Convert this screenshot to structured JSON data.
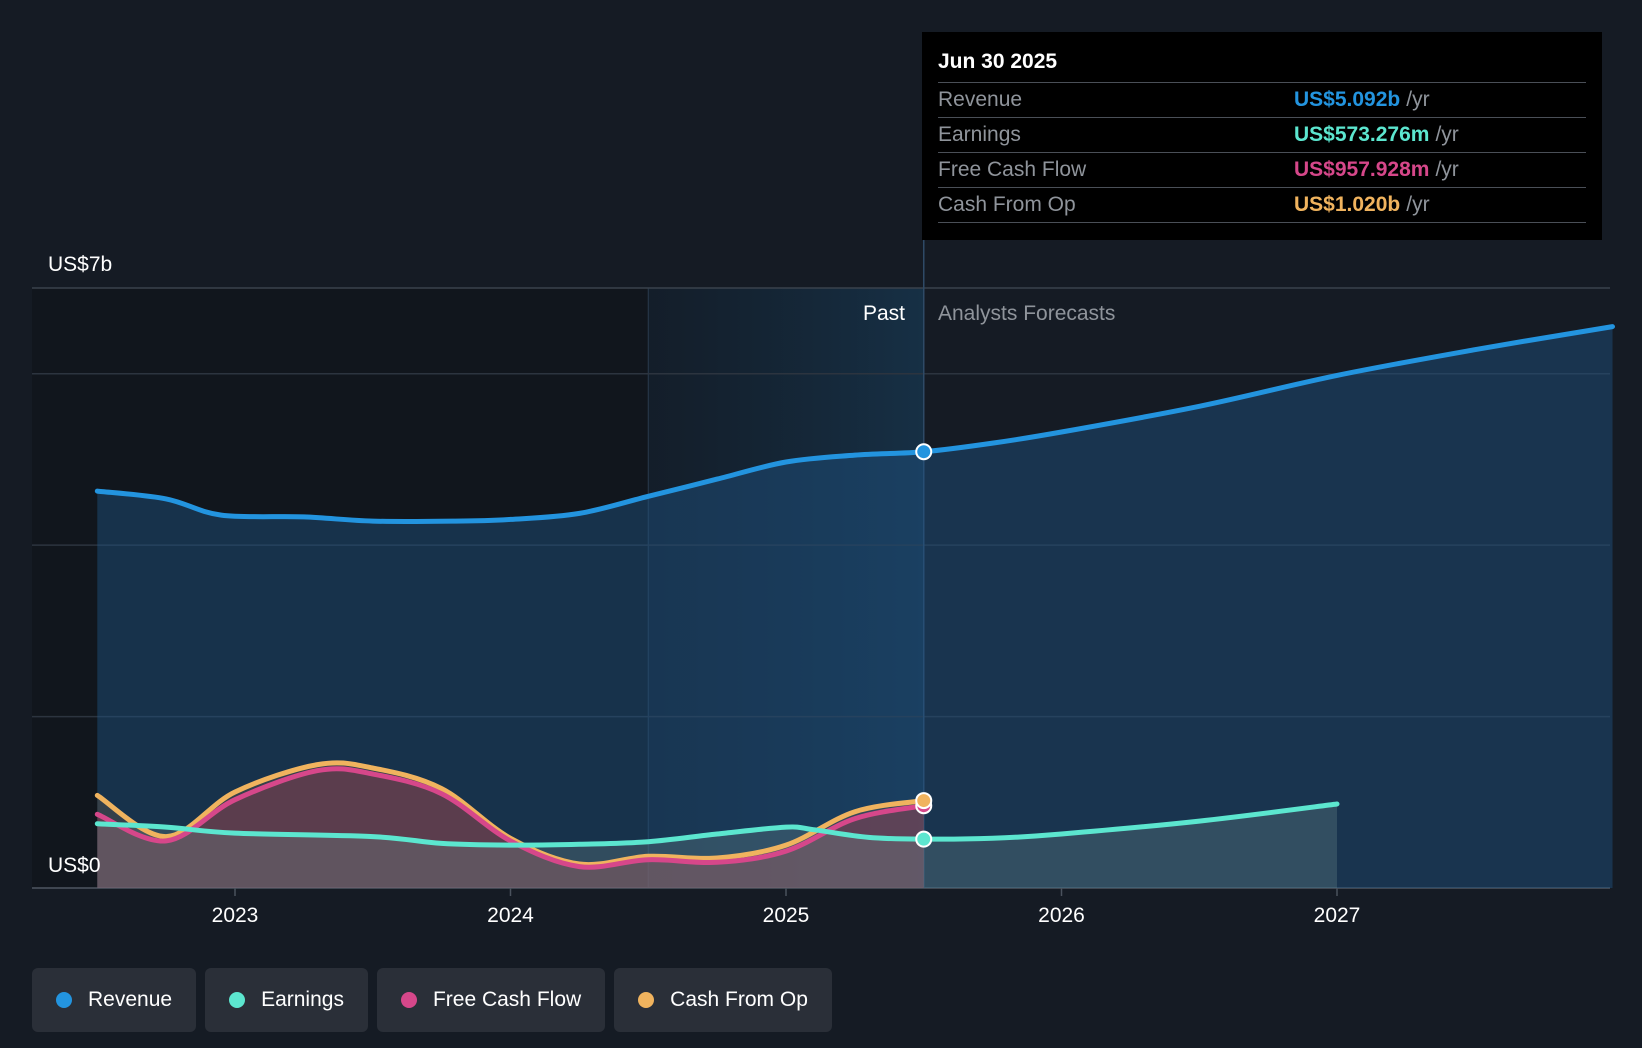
{
  "chart_data": {
    "type": "line",
    "y_axis": {
      "top_label": "US$7b",
      "bottom_label": "US$0",
      "ylim": [
        0,
        7
      ]
    },
    "x_ticks": [
      "2023",
      "2024",
      "2025",
      "2026",
      "2027"
    ],
    "regions": {
      "past_label": "Past",
      "forecast_label": "Analysts Forecasts"
    },
    "series": [
      {
        "name": "Revenue",
        "color": "#2394df",
        "points": [
          [
            2022.5,
            4.63
          ],
          [
            2022.75,
            4.54
          ],
          [
            2022.95,
            4.35
          ],
          [
            2023.25,
            4.33
          ],
          [
            2023.5,
            4.28
          ],
          [
            2023.8,
            4.28
          ],
          [
            2024.0,
            4.3
          ],
          [
            2024.25,
            4.37
          ],
          [
            2024.5,
            4.57
          ],
          [
            2024.75,
            4.77
          ],
          [
            2025.0,
            4.97
          ],
          [
            2025.25,
            5.05
          ],
          [
            2025.5,
            5.09
          ],
          [
            2025.75,
            5.19
          ],
          [
            2026.0,
            5.32
          ],
          [
            2026.5,
            5.62
          ],
          [
            2027.0,
            5.98
          ],
          [
            2027.5,
            6.28
          ],
          [
            2028.0,
            6.55
          ]
        ]
      },
      {
        "name": "Earnings",
        "color": "#5ce6cf",
        "points": [
          [
            2022.5,
            0.75
          ],
          [
            2022.75,
            0.71
          ],
          [
            2023.0,
            0.64
          ],
          [
            2023.5,
            0.6
          ],
          [
            2023.75,
            0.52
          ],
          [
            2024.0,
            0.5
          ],
          [
            2024.25,
            0.51
          ],
          [
            2024.5,
            0.54
          ],
          [
            2024.75,
            0.63
          ],
          [
            2025.0,
            0.71
          ],
          [
            2025.1,
            0.68
          ],
          [
            2025.3,
            0.59
          ],
          [
            2025.5,
            0.57
          ],
          [
            2025.75,
            0.58
          ],
          [
            2026.0,
            0.63
          ],
          [
            2026.5,
            0.78
          ],
          [
            2027.0,
            0.98
          ]
        ]
      },
      {
        "name": "Free Cash Flow",
        "color": "#d6478a",
        "points": [
          [
            2022.5,
            0.86
          ],
          [
            2022.75,
            0.55
          ],
          [
            2023.0,
            1.03
          ],
          [
            2023.3,
            1.37
          ],
          [
            2023.5,
            1.33
          ],
          [
            2023.75,
            1.1
          ],
          [
            2024.0,
            0.55
          ],
          [
            2024.25,
            0.25
          ],
          [
            2024.5,
            0.33
          ],
          [
            2024.75,
            0.3
          ],
          [
            2025.0,
            0.43
          ],
          [
            2025.25,
            0.81
          ],
          [
            2025.5,
            0.96
          ]
        ]
      },
      {
        "name": "Cash From Op",
        "color": "#f0b35e",
        "points": [
          [
            2022.5,
            1.08
          ],
          [
            2022.75,
            0.6
          ],
          [
            2023.0,
            1.12
          ],
          [
            2023.3,
            1.44
          ],
          [
            2023.5,
            1.4
          ],
          [
            2023.75,
            1.16
          ],
          [
            2024.0,
            0.58
          ],
          [
            2024.25,
            0.28
          ],
          [
            2024.5,
            0.37
          ],
          [
            2024.75,
            0.35
          ],
          [
            2025.0,
            0.5
          ],
          [
            2025.25,
            0.89
          ],
          [
            2025.5,
            1.02
          ]
        ]
      }
    ],
    "tooltip": {
      "date": "Jun 30 2025",
      "unit": "/yr",
      "rows": [
        {
          "label": "Revenue",
          "value": "US$5.092b",
          "color": "#2394df"
        },
        {
          "label": "Earnings",
          "value": "US$573.276m",
          "color": "#5ce6cf"
        },
        {
          "label": "Free Cash Flow",
          "value": "US$957.928m",
          "color": "#d6478a"
        },
        {
          "label": "Cash From Op",
          "value": "US$1.020b",
          "color": "#f0b35e"
        }
      ]
    },
    "legend": [
      {
        "label": "Revenue",
        "color": "#2394df"
      },
      {
        "label": "Earnings",
        "color": "#5ce6cf"
      },
      {
        "label": "Free Cash Flow",
        "color": "#d6478a"
      },
      {
        "label": "Cash From Op",
        "color": "#f0b35e"
      }
    ]
  }
}
